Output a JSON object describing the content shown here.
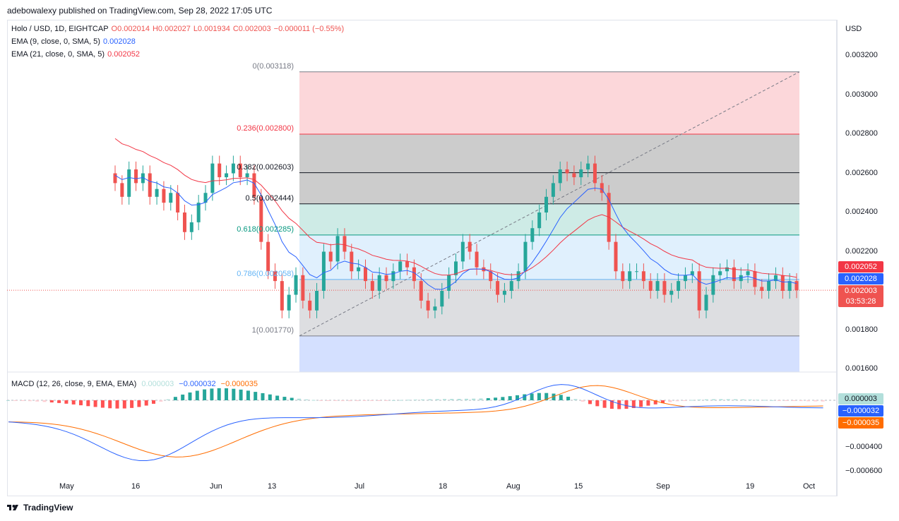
{
  "publisher": "adebowalexy published on TradingView.com, Sep 28, 2022 17:05 UTC",
  "symbol_legend": {
    "title": "Holo / USD, 1D, EIGHTCAP",
    "o": "O0.002014",
    "h": "H0.002027",
    "l": "L0.001934",
    "c": "C0.002003",
    "chg": "−0.000011 (−0.55%)"
  },
  "ema9_legend": {
    "label": "EMA (9, close, 0, SMA, 5)",
    "value": "0.002028"
  },
  "ema21_legend": {
    "label": "EMA (21, close, 0, SMA, 5)",
    "value": "0.002052"
  },
  "macd_legend": {
    "label": "MACD (12, 26, close, 9, EMA, EMA)",
    "hist": "0.000003",
    "macd": "−0.000032",
    "signal": "−0.000035"
  },
  "price_axis": {
    "currency": "USD",
    "ticks": [
      "0.003200",
      "0.003000",
      "0.002800",
      "0.002600",
      "0.002400",
      "0.002200",
      "0.001800",
      "0.001600"
    ]
  },
  "macd_axis": {
    "ticks": [
      "−0.000400",
      "−0.000600"
    ]
  },
  "badges": {
    "ema21": "0.002052",
    "ema9": "0.002028",
    "price": "0.002003",
    "countdown": "03:53:28",
    "macd_hist": "0.000003",
    "macd": "−0.000032",
    "signal": "−0.000035"
  },
  "time_axis": [
    "May",
    "16",
    "Jun",
    "13",
    "Jul",
    "18",
    "Aug",
    "15",
    "Sep",
    "19",
    "Oct"
  ],
  "fib_levels": [
    {
      "label": "0(0.003118)",
      "price": 0.003118,
      "color": "#787b86"
    },
    {
      "label": "0.236(0.002800)",
      "price": 0.0028,
      "color": "#f23645"
    },
    {
      "label": "0.382(0.002603)",
      "price": 0.002603,
      "color": "#131722"
    },
    {
      "label": "0.5(0.002444)",
      "price": 0.002444,
      "color": "#131722"
    },
    {
      "label": "0.618(0.002285)",
      "price": 0.002285,
      "color": "#089981"
    },
    {
      "label": "0.786(0.002058)",
      "price": 0.002058,
      "color": "#64b5f6"
    },
    {
      "label": "1(0.001770)",
      "price": 0.00177,
      "color": "#787b86"
    }
  ],
  "brand": "TradingView",
  "colors": {
    "up": "#26a69a",
    "down": "#ef5350",
    "ema9": "#2962ff",
    "ema21": "#f23645",
    "macd": "#2962ff",
    "signal": "#ff6d00"
  },
  "chart_data": {
    "type": "candlestick",
    "price_range": [
      0.0016,
      0.0032
    ],
    "candles_close_approx": [
      0.00255,
      0.00248,
      0.00262,
      0.00255,
      0.0026,
      0.00248,
      0.00252,
      0.00245,
      0.0025,
      0.0024,
      0.0023,
      0.00235,
      0.00245,
      0.0025,
      0.00265,
      0.00258,
      0.0026,
      0.00265,
      0.00258,
      0.0026,
      0.00248,
      0.00225,
      0.0021,
      0.00205,
      0.0019,
      0.00198,
      0.00208,
      0.00195,
      0.0019,
      0.002,
      0.0022,
      0.00215,
      0.00228,
      0.0022,
      0.0021,
      0.00212,
      0.00205,
      0.002,
      0.00208,
      0.00205,
      0.0021,
      0.00215,
      0.00212,
      0.00205,
      0.00195,
      0.0019,
      0.00192,
      0.002,
      0.00208,
      0.00215,
      0.00225,
      0.0022,
      0.00212,
      0.0021,
      0.00205,
      0.00198,
      0.002,
      0.00205,
      0.0021,
      0.00225,
      0.00232,
      0.0024,
      0.00248,
      0.00255,
      0.00262,
      0.0026,
      0.00258,
      0.00262,
      0.00265,
      0.00255,
      0.0025,
      0.00225,
      0.0021,
      0.00205,
      0.0021,
      0.0021,
      0.00205,
      0.002,
      0.00205,
      0.00198,
      0.002,
      0.00205,
      0.00208,
      0.0021,
      0.0019,
      0.00198,
      0.00208,
      0.0021,
      0.00212,
      0.00205,
      0.00208,
      0.0021,
      0.00202,
      0.002,
      0.00205,
      0.00208,
      0.002,
      0.00205,
      0.002003
    ]
  }
}
